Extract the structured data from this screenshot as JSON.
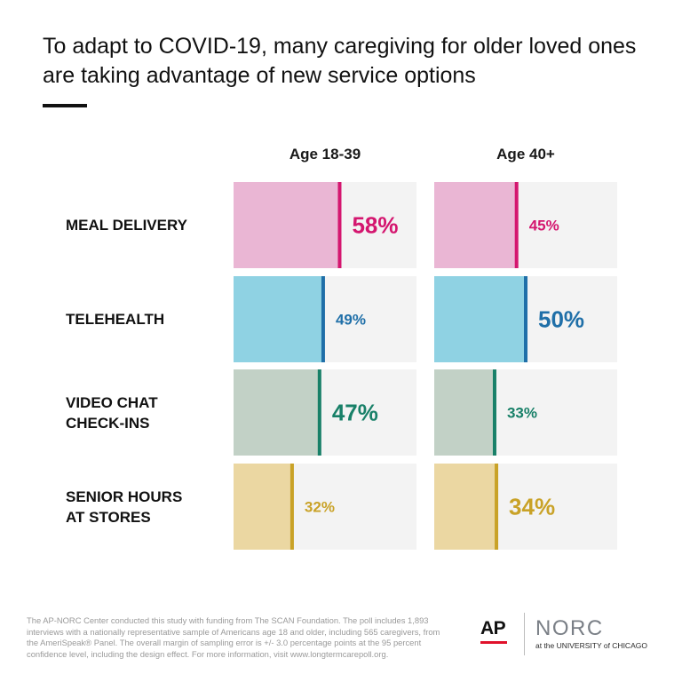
{
  "title": "To adapt to COVID-19, many caregiving for older loved ones are taking advantage of new service options",
  "chart_data": {
    "type": "bar",
    "categories": [
      "MEAL DELIVERY",
      "TELEHEALTH",
      "VIDEO CHAT\nCHECK-INS",
      "SENIOR HOURS\nAT STORES"
    ],
    "series": [
      {
        "name": "Age 18-39",
        "values": [
          58,
          49,
          47,
          32
        ]
      },
      {
        "name": "Age 40+",
        "values": [
          45,
          50,
          33,
          34
        ]
      }
    ],
    "value_labels": [
      [
        "58%",
        "49%",
        "47%",
        "32%"
      ],
      [
        "45%",
        "50%",
        "33%",
        "34%"
      ]
    ],
    "ylim": [
      0,
      100
    ],
    "row_colors": [
      {
        "fill": "#eab6d4",
        "accent": "#d4166f"
      },
      {
        "fill": "#8fd2e3",
        "accent": "#1f6fa8"
      },
      {
        "fill": "#c2d1c6",
        "accent": "#188068"
      },
      {
        "fill": "#ebd7a2",
        "accent": "#c9a227"
      }
    ],
    "track_color": "#f3f3f3",
    "emphasized_labels": [
      [
        true,
        false
      ],
      [
        false,
        true
      ],
      [
        true,
        false
      ],
      [
        false,
        true
      ]
    ]
  },
  "footnote": "The AP-NORC Center conducted this study with funding from The SCAN Foundation. The poll includes 1,893 interviews with a nationally representative sample of Americans age 18 and older, including 565 caregivers, from the AmeriSpeak® Panel. The overall margin of sampling error is +/- 3.0 percentage points at the 95 percent confidence level, including the design effect. For more information, visit www.longtermcarepoll.org.",
  "logos": {
    "ap": "AP",
    "norc": "NORC",
    "norc_sub": "at the UNIVERSITY of CHICAGO"
  }
}
